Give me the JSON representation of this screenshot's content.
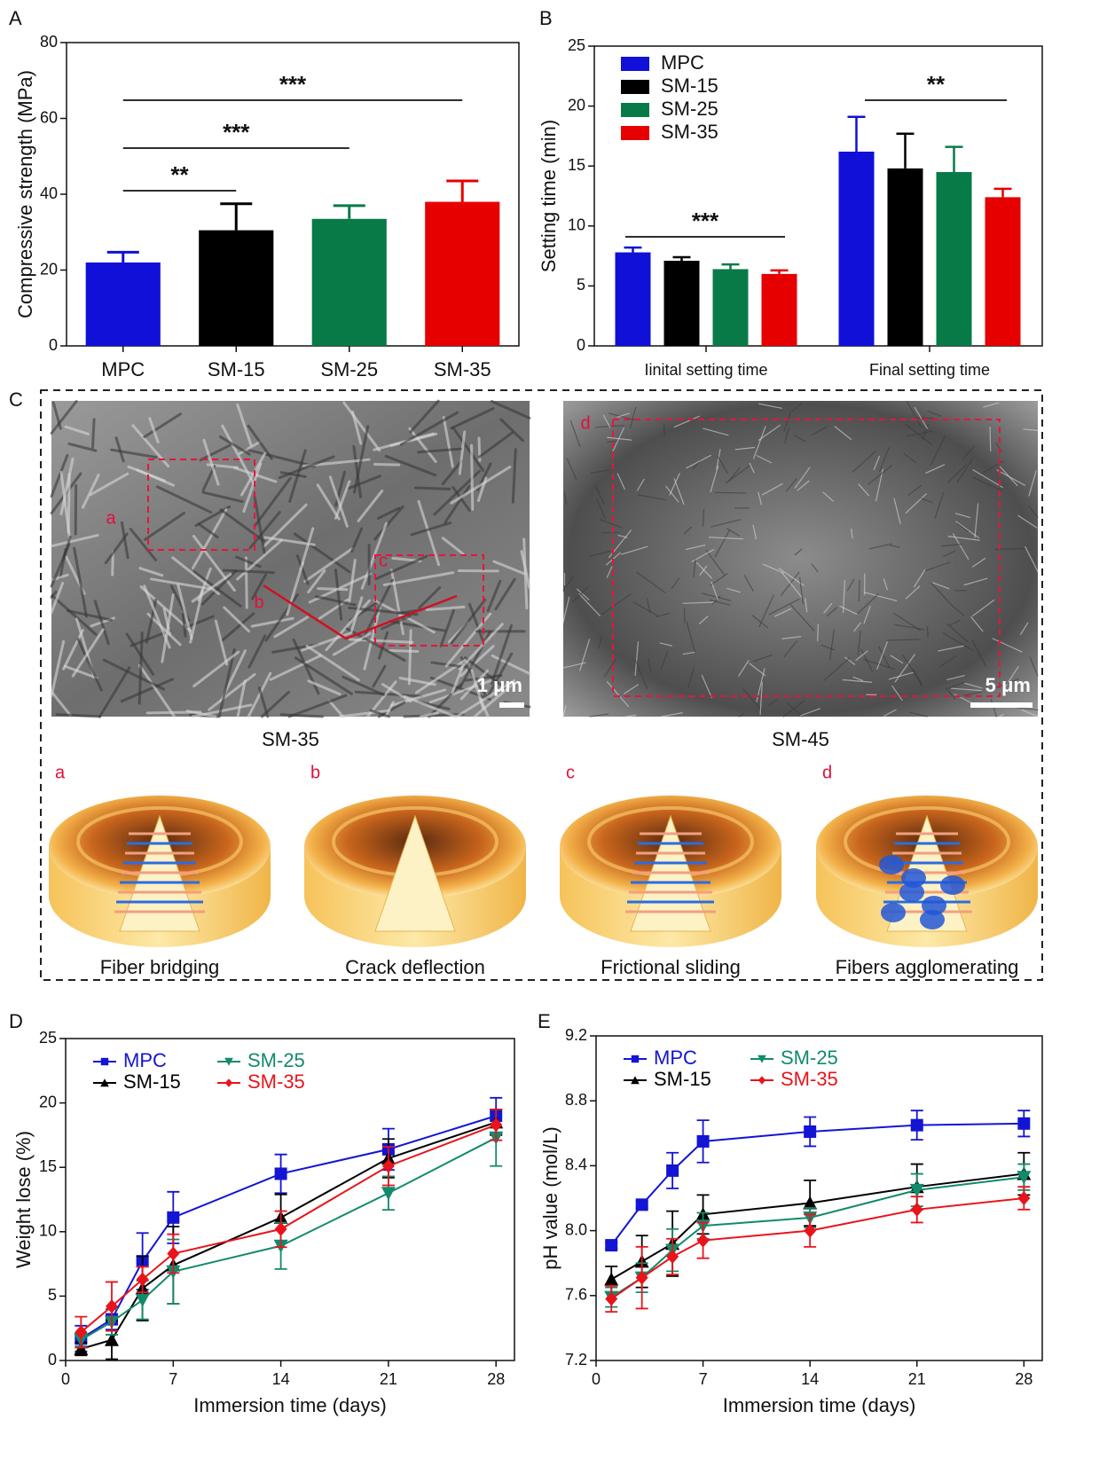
{
  "chart_data": [
    {
      "type": "bar",
      "panel": "A",
      "y_label": "Compressive strength (MPa)",
      "categories": [
        "MPC",
        "SM-15",
        "SM-25",
        "SM-35"
      ],
      "values": [
        22,
        30.5,
        33.5,
        38
      ],
      "errors": [
        2.7,
        7,
        3.5,
        5.5
      ],
      "colors": [
        "#1010d8",
        "#000000",
        "#087a47",
        "#e60000"
      ],
      "ylim": [
        0,
        80
      ],
      "yticks": [
        0,
        20,
        40,
        60,
        80
      ],
      "annotations": [
        "**",
        "***",
        "***"
      ]
    },
    {
      "type": "grouped_bar",
      "panel": "B",
      "y_label": "Setting time (min)",
      "categories": [
        "Iinital setting time",
        "Final setting time"
      ],
      "series": [
        {
          "name": "MPC",
          "color": "#1010d8",
          "values": [
            7.8,
            16.2
          ],
          "errors": [
            0.4,
            2.9
          ]
        },
        {
          "name": "SM-15",
          "color": "#000000",
          "values": [
            7.1,
            14.8
          ],
          "errors": [
            0.3,
            2.9
          ]
        },
        {
          "name": "SM-25",
          "color": "#087a47",
          "values": [
            6.4,
            14.5
          ],
          "errors": [
            0.4,
            2.1
          ]
        },
        {
          "name": "SM-35",
          "color": "#e60000",
          "values": [
            6.0,
            12.4
          ],
          "errors": [
            0.3,
            0.7
          ]
        }
      ],
      "ylim": [
        0,
        25
      ],
      "yticks": [
        0,
        5,
        10,
        15,
        20,
        25
      ],
      "annotations": [
        "***",
        "**"
      ]
    },
    {
      "type": "line",
      "panel": "D",
      "x_label": "Immersion time (days)",
      "y_label": "Weight lose (%)",
      "x": [
        1,
        3,
        5,
        7,
        14,
        21,
        28
      ],
      "series": [
        {
          "name": "MPC",
          "color": "#1414d4",
          "values": [
            1.7,
            3.2,
            7.7,
            11.1,
            14.5,
            16.4,
            19.0
          ],
          "errors": [
            1.0,
            0.8,
            2.2,
            2.0,
            1.5,
            1.6,
            1.4
          ]
        },
        {
          "name": "SM-15",
          "color": "#000000",
          "values": [
            0.9,
            1.6,
            5.6,
            7.4,
            11.1,
            15.7,
            18.5
          ],
          "errors": [
            0.5,
            1.5,
            2.5,
            3.0,
            1.8,
            1.5,
            1.0
          ]
        },
        {
          "name": "SM-25",
          "color": "#128a6c",
          "values": [
            1.6,
            3.0,
            4.7,
            6.9,
            8.9,
            13.0,
            17.3
          ],
          "errors": [
            0.5,
            1.0,
            1.5,
            2.5,
            1.8,
            1.3,
            2.2
          ]
        },
        {
          "name": "SM-35",
          "color": "#e8141c",
          "values": [
            2.2,
            4.2,
            6.3,
            8.3,
            10.2,
            15.1,
            18.3
          ],
          "errors": [
            1.2,
            1.9,
            1.0,
            1.5,
            1.4,
            1.5,
            1.2
          ]
        }
      ],
      "xlim": [
        0,
        29.2
      ],
      "xticks": [
        0,
        7,
        14,
        21,
        28
      ],
      "ylim": [
        0,
        25
      ],
      "yticks": [
        0,
        5,
        10,
        15,
        20,
        25
      ]
    },
    {
      "type": "line",
      "panel": "E",
      "x_label": "Immersion time (days)",
      "y_label": "pH value (mol/L)",
      "x": [
        1,
        3,
        5,
        7,
        14,
        21,
        28
      ],
      "series": [
        {
          "name": "MPC",
          "color": "#1414d4",
          "values": [
            7.91,
            8.16,
            8.37,
            8.55,
            8.61,
            8.65,
            8.66
          ],
          "errors": [
            0.02,
            0.02,
            0.11,
            0.13,
            0.09,
            0.09,
            0.08
          ]
        },
        {
          "name": "SM-15",
          "color": "#000000",
          "values": [
            7.7,
            7.81,
            7.92,
            8.1,
            8.17,
            8.27,
            8.35
          ],
          "errors": [
            0.08,
            0.16,
            0.2,
            0.12,
            0.14,
            0.14,
            0.13
          ]
        },
        {
          "name": "SM-25",
          "color": "#128a6c",
          "values": [
            7.59,
            7.71,
            7.88,
            8.03,
            8.08,
            8.25,
            8.33
          ],
          "errors": [
            0.06,
            0.09,
            0.13,
            0.08,
            0.06,
            0.1,
            0.08
          ]
        },
        {
          "name": "SM-35",
          "color": "#e8141c",
          "values": [
            7.58,
            7.71,
            7.84,
            7.94,
            8.0,
            8.13,
            8.2
          ],
          "errors": [
            0.08,
            0.19,
            0.11,
            0.11,
            0.1,
            0.08,
            0.07
          ]
        }
      ],
      "xlim": [
        0,
        29.2
      ],
      "xticks": [
        0,
        7,
        14,
        21,
        28
      ],
      "ylim": [
        7.2,
        9.2
      ],
      "yticks": [
        7.2,
        7.6,
        {
          "value": 8,
          "label": "8.0"
        },
        8.4,
        8.8,
        9.2
      ]
    }
  ],
  "figure_c": {
    "label": "C",
    "images": [
      {
        "name": "SM-35",
        "scale_bar": "1 μm",
        "regions": [
          "a",
          "b",
          "c"
        ]
      },
      {
        "name": "SM-45",
        "scale_bar": "5 μm",
        "regions": [
          "d"
        ]
      }
    ],
    "mechanisms": [
      {
        "letter": "a",
        "caption": "Fiber bridging"
      },
      {
        "letter": "b",
        "caption": "Crack deflection"
      },
      {
        "letter": "c",
        "caption": "Frictional sliding"
      },
      {
        "letter": "d",
        "caption": "Fibers agglomerating"
      }
    ]
  }
}
